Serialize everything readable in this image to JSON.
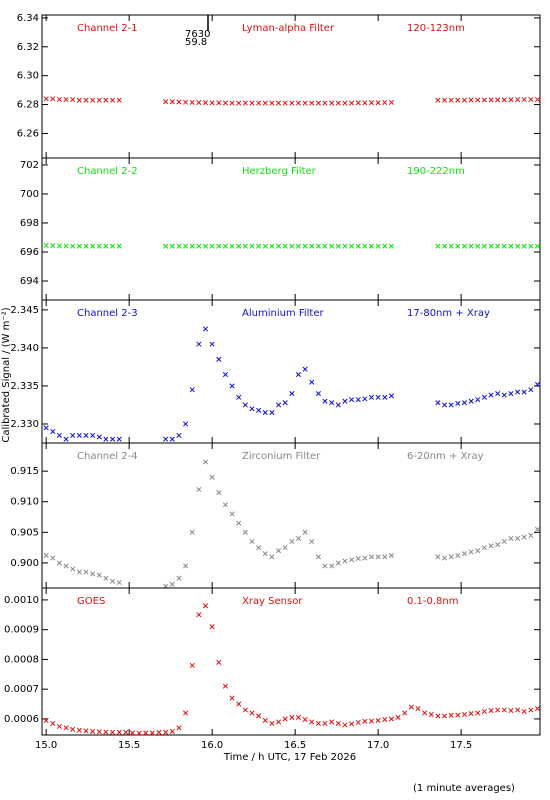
{
  "chart_data": {
    "type": "scatter",
    "xlabel": "Time / h UTC, 17 Feb 2026",
    "ylabel": "Calibrated Signal / (W m⁻²)",
    "note": "(1 minute averages)",
    "xlim": [
      14.975,
      17.975
    ],
    "xticks": [
      {
        "value": 15,
        "label": "15.0"
      },
      15.5,
      {
        "value": 16,
        "label": "16.0"
      },
      16.5,
      {
        "value": 17,
        "label": "17.0"
      },
      17.5
    ],
    "x": [
      15.0,
      15.04,
      15.08,
      15.12,
      15.16,
      15.2,
      15.24,
      15.28,
      15.32,
      15.36,
      15.4,
      15.44,
      15.48,
      15.52,
      15.56,
      15.6,
      15.64,
      15.68,
      15.72,
      15.76,
      15.8,
      15.84,
      15.88,
      15.92,
      15.96,
      16.0,
      16.04,
      16.08,
      16.12,
      16.16,
      16.2,
      16.24,
      16.28,
      16.32,
      16.36,
      16.4,
      16.44,
      16.48,
      16.52,
      16.56,
      16.6,
      16.64,
      16.68,
      16.72,
      16.76,
      16.8,
      16.84,
      16.88,
      16.92,
      16.96,
      17.0,
      17.04,
      17.08,
      17.12,
      17.16,
      17.2,
      17.24,
      17.28,
      17.32,
      17.36,
      17.4,
      17.44,
      17.48,
      17.52,
      17.56,
      17.6,
      17.64,
      17.68,
      17.72,
      17.76,
      17.8,
      17.84,
      17.88,
      17.92,
      17.96
    ],
    "panels": [
      {
        "channel": "Channel 2-1",
        "filter": "Lyman-alpha Filter",
        "range": "120-123nm",
        "color": "#e01010",
        "ylim": [
          6.243,
          6.342
        ],
        "yticks": [
          6.26,
          6.28,
          {
            "value": 6.3,
            "label": "6.30"
          },
          6.32,
          6.34
        ],
        "annotations": [
          "7630",
          "59.8"
        ],
        "values": [
          6.284,
          6.284,
          6.2835,
          6.2835,
          6.2835,
          6.283,
          6.283,
          6.283,
          6.283,
          6.283,
          6.283,
          6.283,
          null,
          null,
          null,
          null,
          null,
          null,
          6.282,
          6.282,
          6.2818,
          6.2816,
          6.2815,
          6.2814,
          6.2813,
          6.2812,
          6.2812,
          6.2811,
          6.281,
          6.281,
          6.281,
          6.281,
          6.281,
          6.281,
          6.281,
          6.281,
          6.281,
          6.281,
          6.281,
          6.281,
          6.281,
          6.281,
          6.281,
          6.281,
          6.281,
          6.281,
          6.281,
          6.2812,
          6.2812,
          6.2813,
          6.2813,
          6.2814,
          6.2815,
          null,
          null,
          null,
          null,
          null,
          null,
          6.283,
          6.283,
          6.283,
          6.283,
          6.283,
          6.2832,
          6.2832,
          6.2832,
          6.2833,
          6.2833,
          6.2833,
          6.2834,
          6.2834,
          6.2835,
          6.2835,
          6.2835
        ]
      },
      {
        "channel": "Channel 2-2",
        "filter": "Herzberg Filter",
        "range": "190-222nm",
        "color": "#10e010",
        "ylim": [
          692.69,
          702.48
        ],
        "yticks": [
          694,
          696,
          698,
          700,
          702
        ],
        "values": [
          696.45,
          696.45,
          696.42,
          696.42,
          696.4,
          696.4,
          696.4,
          696.4,
          696.4,
          696.4,
          696.4,
          696.4,
          null,
          null,
          null,
          null,
          null,
          null,
          696.4,
          696.4,
          696.4,
          696.4,
          696.4,
          696.4,
          696.4,
          696.4,
          696.4,
          696.4,
          696.4,
          696.4,
          696.4,
          696.4,
          696.4,
          696.4,
          696.4,
          696.4,
          696.4,
          696.4,
          696.4,
          696.4,
          696.4,
          696.4,
          696.4,
          696.4,
          696.4,
          696.4,
          696.4,
          696.4,
          696.4,
          696.4,
          696.4,
          696.4,
          696.4,
          null,
          null,
          null,
          null,
          null,
          null,
          696.4,
          696.4,
          696.4,
          696.4,
          696.4,
          696.4,
          696.4,
          696.4,
          696.4,
          696.4,
          696.4,
          696.4,
          696.4,
          696.4,
          696.4,
          696.4
        ]
      },
      {
        "channel": "Channel 2-3",
        "filter": "Aluminium Filter",
        "range": "17-80nm + Xray",
        "color": "#1010d0",
        "ylim": [
          2.3275,
          2.3463
        ],
        "yticks": [
          {
            "value": 2.33,
            "label": "2.330"
          },
          2.335,
          {
            "value": 2.34,
            "label": "2.340"
          },
          2.345
        ],
        "values": [
          2.3295,
          2.329,
          2.3285,
          2.328,
          2.3285,
          2.3285,
          2.3285,
          2.3285,
          2.3283,
          2.328,
          2.328,
          2.328,
          null,
          null,
          null,
          null,
          null,
          null,
          2.328,
          2.328,
          2.3285,
          2.33,
          2.3345,
          2.3405,
          2.3425,
          2.3405,
          2.3385,
          2.3365,
          2.335,
          2.3335,
          2.3325,
          2.332,
          2.3318,
          2.3315,
          2.3315,
          2.3325,
          2.3328,
          2.334,
          2.3365,
          2.3372,
          2.3355,
          2.334,
          2.333,
          2.3328,
          2.3325,
          2.333,
          2.3332,
          2.3332,
          2.3333,
          2.3335,
          2.3335,
          2.3335,
          2.3337,
          null,
          null,
          null,
          null,
          null,
          null,
          2.3328,
          2.3325,
          2.3325,
          2.3327,
          2.3328,
          2.333,
          2.3332,
          2.3335,
          2.3338,
          2.334,
          2.3338,
          2.334,
          2.3342,
          2.3342,
          2.3345,
          2.3352
        ]
      },
      {
        "channel": "Channel 2-4",
        "filter": "Zirconium Filter",
        "range": "6-20nm + Xray",
        "color": "#888888",
        "ylim": [
          0.8959,
          0.9196
        ],
        "yticks": [
          {
            "value": 0.9,
            "label": "0.900"
          },
          0.905,
          {
            "value": 0.91,
            "label": "0.910"
          },
          0.915
        ],
        "values": [
          0.9012,
          0.9008,
          0.9,
          0.8995,
          0.899,
          0.8985,
          0.8985,
          0.8982,
          0.898,
          0.8975,
          0.897,
          0.8968,
          null,
          null,
          null,
          null,
          null,
          null,
          0.8962,
          0.8965,
          0.8975,
          0.8995,
          0.905,
          0.912,
          0.9165,
          0.914,
          0.9115,
          0.9095,
          0.908,
          0.9065,
          0.905,
          0.9035,
          0.9025,
          0.9015,
          0.901,
          0.902,
          0.9025,
          0.9035,
          0.904,
          0.905,
          0.9035,
          0.901,
          0.8995,
          0.8995,
          0.9,
          0.9003,
          0.9005,
          0.9007,
          0.9008,
          0.901,
          0.901,
          0.901,
          0.9012,
          null,
          null,
          null,
          null,
          null,
          null,
          0.901,
          0.9008,
          0.901,
          0.9012,
          0.9015,
          0.9018,
          0.902,
          0.9025,
          0.9028,
          0.903,
          0.9035,
          0.904,
          0.904,
          0.9042,
          0.9045,
          0.9055
        ]
      },
      {
        "channel": "GOES",
        "filter": "Xray Sensor",
        "range": "0.1-0.8nm",
        "color": "#e01010",
        "ylim": [
          0.000546,
          0.00104
        ],
        "yticks": [
          {
            "value": 0.0006,
            "label": "0.0006"
          },
          {
            "value": 0.0007,
            "label": "0.0007"
          },
          {
            "value": 0.0008,
            "label": "0.0008"
          },
          {
            "value": 0.0009,
            "label": "0.0009"
          },
          {
            "value": 0.001,
            "label": "0.0010"
          }
        ],
        "values": [
          0.000595,
          0.000585,
          0.000575,
          0.00057,
          0.000565,
          0.000562,
          0.00056,
          0.000558,
          0.000557,
          0.000556,
          0.000555,
          0.000555,
          0.000555,
          0.000553,
          0.000552,
          0.000553,
          0.000553,
          0.000555,
          0.000555,
          0.000558,
          0.00057,
          0.00062,
          0.00078,
          0.00095,
          0.00098,
          0.00091,
          0.00079,
          0.00071,
          0.00067,
          0.00065,
          0.00063,
          0.00062,
          0.00061,
          0.000595,
          0.000585,
          0.00059,
          0.0006,
          0.000605,
          0.000605,
          0.000598,
          0.00059,
          0.000585,
          0.000585,
          0.00059,
          0.000585,
          0.00058,
          0.000583,
          0.000588,
          0.000592,
          0.000593,
          0.000595,
          0.000598,
          0.0006,
          0.000605,
          0.00062,
          0.00064,
          0.000635,
          0.00062,
          0.000615,
          0.00061,
          0.00061,
          0.000612,
          0.000613,
          0.000615,
          0.000618,
          0.00062,
          0.000625,
          0.000628,
          0.00063,
          0.00063,
          0.000628,
          0.00063,
          0.000625,
          0.00063,
          0.000635
        ]
      }
    ]
  }
}
